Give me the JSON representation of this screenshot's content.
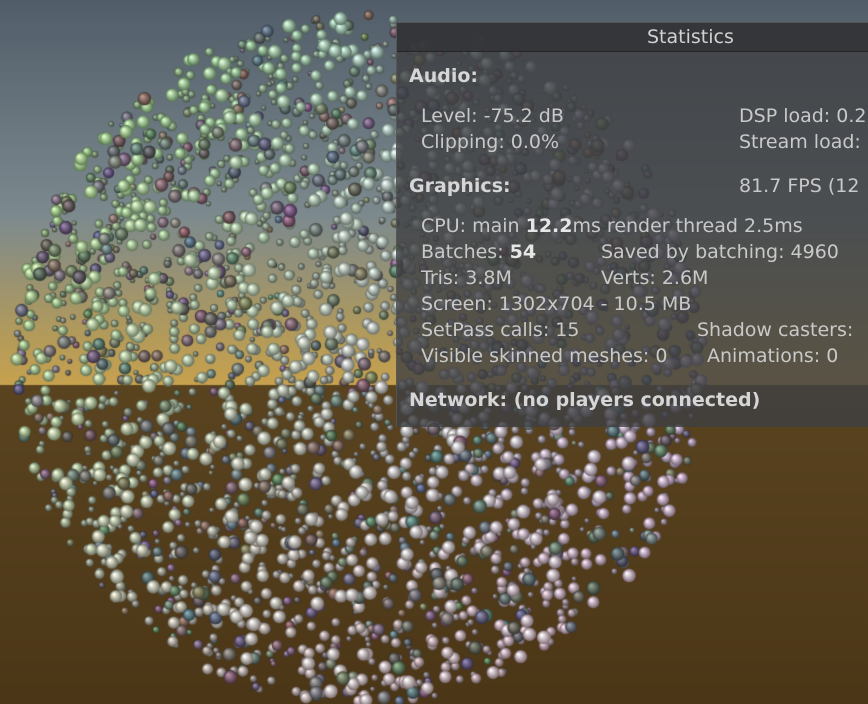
{
  "panel": {
    "title": "Statistics",
    "audio": {
      "heading": "Audio:",
      "level": "Level: -75.2 dB",
      "clipping": "Clipping: 0.0%",
      "dsp_load": "DSP load: 0.2",
      "stream_load": "Stream load:"
    },
    "graphics": {
      "heading": "Graphics:",
      "fps": "81.7 FPS (12",
      "cpu_prefix": "CPU: main",
      "cpu_main": "12.2",
      "cpu_suffix": "ms  render thread 2.5ms",
      "batches_prefix": "Batches:",
      "batches": "54",
      "saved_by_batching": "Saved by batching: 4960",
      "tris": "Tris: 3.8M",
      "verts": "Verts: 2.6M",
      "screen": "Screen: 1302x704 - 10.5 MB",
      "setpass": "SetPass calls: 15",
      "shadow_casters": "Shadow casters:",
      "skinned": "Visible skinned meshes: 0",
      "animations": "Animations: 0"
    },
    "network": "Network: (no players connected)"
  },
  "colors": {
    "sky_top": "#515d69",
    "sky_horizon": "#c9a24d",
    "ground": "#4b3617",
    "panel_bg": "#3e4042",
    "panel_text": "#c9c9c9",
    "sphere_green": "#8fdc6e",
    "sphere_blue": "#aab0f2",
    "sphere_pink": "#e8b4cd",
    "sphere_grey": "#6a6a6a"
  }
}
